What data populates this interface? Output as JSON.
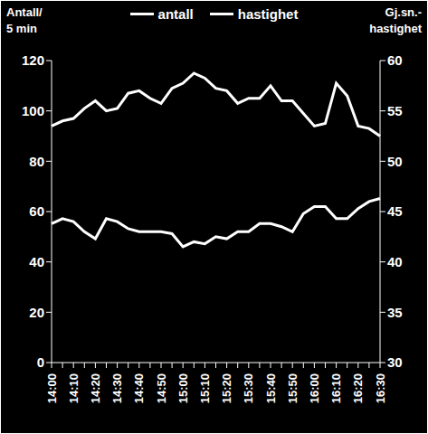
{
  "chart_data": {
    "type": "line",
    "y_label": "Antall/\n5 min",
    "y2_label": "Gj.sn.-\nhastighet",
    "legend": "top",
    "categories": [
      "14:00",
      null,
      "14:10",
      null,
      "14:20",
      null,
      "14:30",
      null,
      "14:40",
      null,
      "14:50",
      null,
      "15:00",
      null,
      "15:10",
      null,
      "15:20",
      null,
      "15:30",
      null,
      "15:40",
      null,
      "15:50",
      null,
      "16:00",
      null,
      "16:10",
      null,
      "16:20",
      null,
      "16:30"
    ],
    "ylim": [
      0,
      120
    ],
    "yticks": [
      0,
      20,
      40,
      60,
      80,
      100,
      120
    ],
    "y2lim": [
      30,
      60
    ],
    "y2ticks": [
      30,
      35,
      40,
      45,
      50,
      55,
      60
    ],
    "series": [
      {
        "name": "antall",
        "color": "#ffffff",
        "values": [
          94,
          96,
          97,
          101,
          104,
          100,
          101,
          107,
          108,
          105,
          103,
          109,
          111,
          115,
          113,
          109,
          108,
          103,
          105,
          105,
          110,
          104,
          104,
          99,
          94,
          95,
          111,
          106,
          94,
          93,
          90
        ]
      },
      {
        "name": "hastighet",
        "color": "#ffffff",
        "axis": "y2",
        "values": [
          43.8,
          44.3,
          44,
          43,
          42.3,
          44.3,
          44,
          43.3,
          43,
          43,
          43,
          42.8,
          41.5,
          42,
          41.8,
          42.5,
          42.3,
          43,
          43,
          43.8,
          43.8,
          43.5,
          43,
          44.8,
          45.5,
          45.5,
          44.3,
          44.3,
          45.3,
          46,
          46.3
        ]
      }
    ]
  }
}
